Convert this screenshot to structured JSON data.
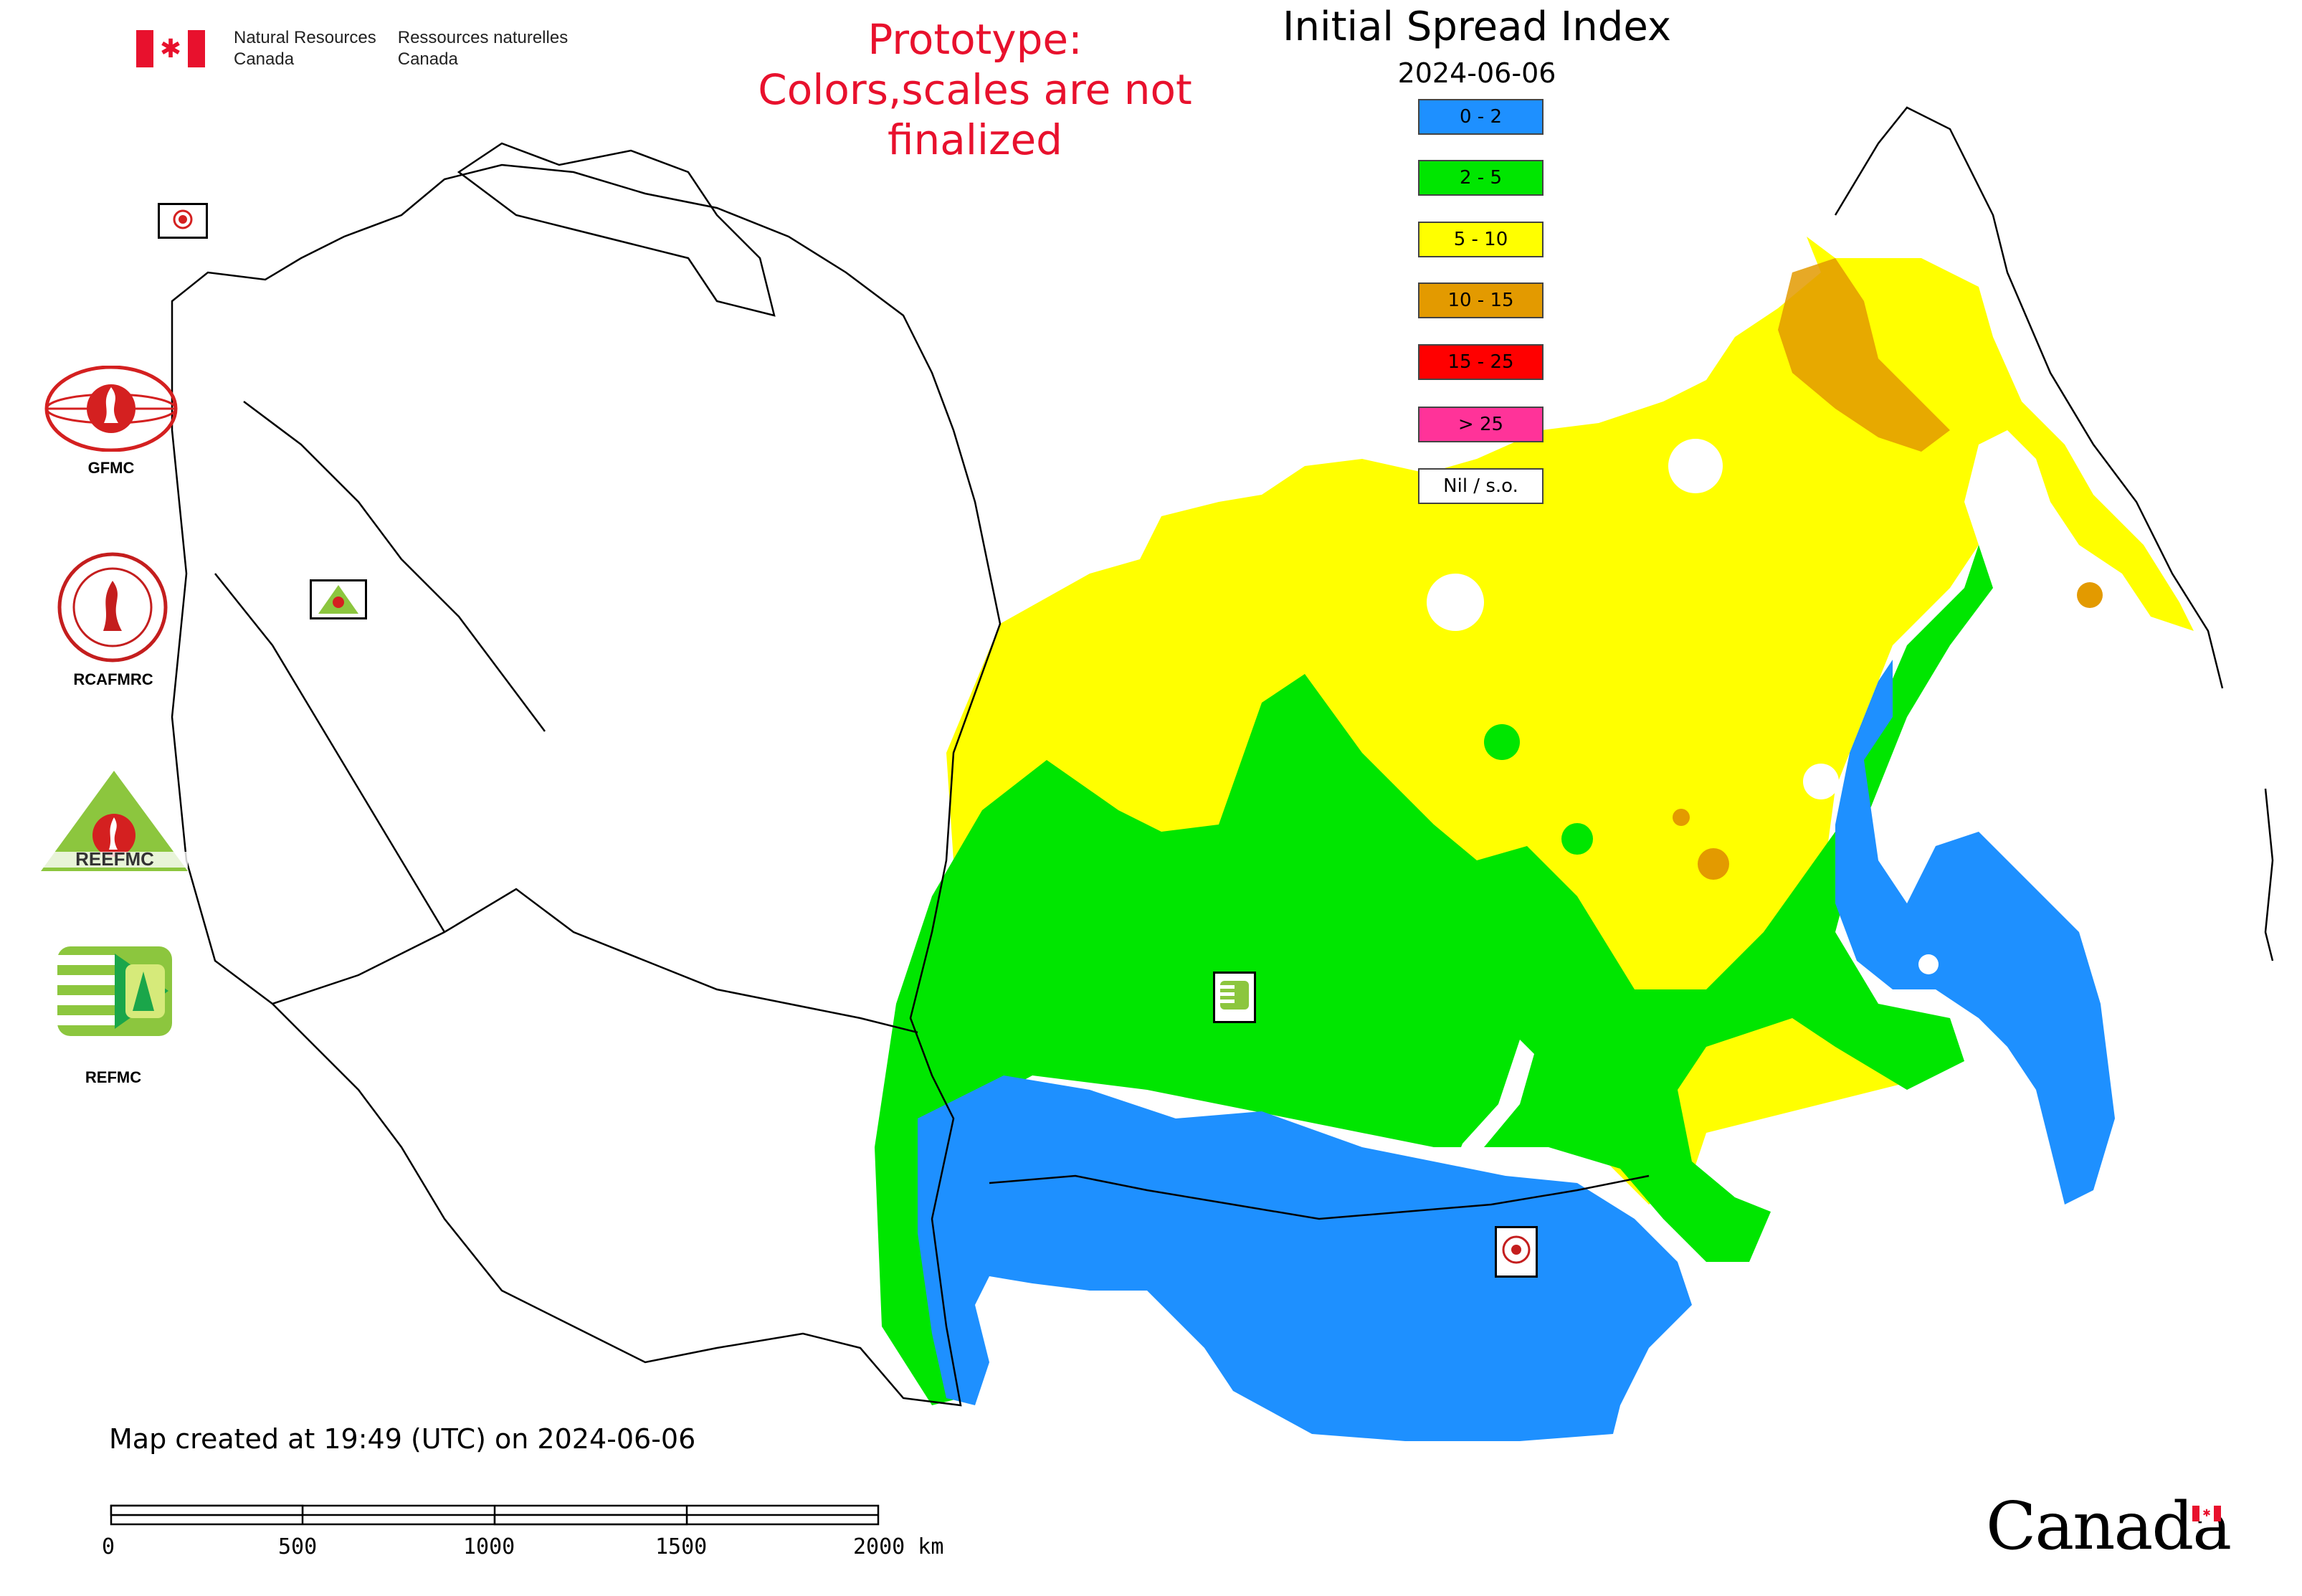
{
  "header": {
    "gov_en_line1": "Natural Resources",
    "gov_en_line2": "Canada",
    "gov_fr_line1": "Ressources naturelles",
    "gov_fr_line2": "Canada",
    "prototype_line1": "Prototype:",
    "prototype_line2": "Colors,scales are not finalized",
    "title": "Initial Spread Index",
    "date": "2024-06-06"
  },
  "legend": [
    {
      "label": "0 - 2",
      "color": "#1e90ff"
    },
    {
      "label": "2 - 5",
      "color": "#00e600"
    },
    {
      "label": "5 - 10",
      "color": "#ffff00"
    },
    {
      "label": "10 - 15",
      "color": "#e39a00"
    },
    {
      "label": "15 - 25",
      "color": "#ff0000"
    },
    {
      "label": "> 25",
      "color": "#ff3399"
    },
    {
      "label": "Nil / s.o.",
      "color": "#ffffff"
    }
  ],
  "logos": {
    "gfmc": "GFMC",
    "rcafmrc": "RCAFMRC",
    "reefmc_caption": "REEFMC",
    "refmc": "REFMC"
  },
  "footer": {
    "created": "Map created at 19:49 (UTC) on 2024-06-06",
    "scale": [
      "0",
      "500",
      "1000",
      "1500",
      "2000 km"
    ],
    "wordmark": "Canada"
  },
  "colors": {
    "blue": "#1e90ff",
    "green": "#00e600",
    "yellow": "#ffff00",
    "orange": "#e39a00",
    "red": "#e8112d"
  }
}
